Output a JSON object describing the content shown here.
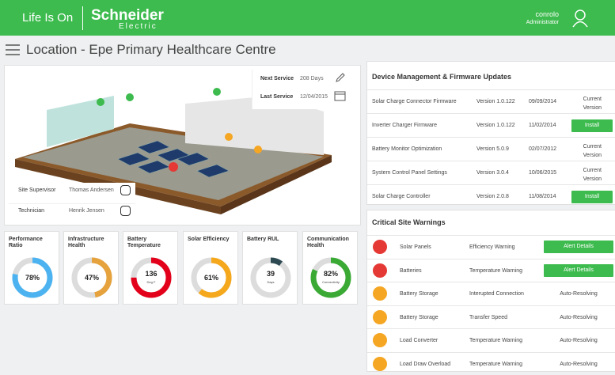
{
  "header": {
    "tagline": "Life Is On",
    "brand": "Schneider",
    "brand_sub": "Electric",
    "user_name": "conrolo",
    "user_role": "Administrator"
  },
  "page_title": "Location - Epe Primary Healthcare Centre",
  "service": {
    "next_label": "Next Service",
    "next_value": "208 Days",
    "last_label": "Last Service",
    "last_value": "12/04/2015"
  },
  "contacts": [
    {
      "role": "Site Supervisor",
      "name": "Thomas Andersen"
    },
    {
      "role": "Technician",
      "name": "Henrik Jensen"
    }
  ],
  "kpis": [
    {
      "title": "Performance Ratio",
      "value": 78,
      "value_label": "78%",
      "fill": 78,
      "color": "#4db3f0"
    },
    {
      "title": "Infrastructure Health",
      "value": 47,
      "value_label": "47%",
      "fill": 47,
      "color": "#e6a23c"
    },
    {
      "title": "Battery Temperature",
      "value": 136,
      "unit": "Deg F",
      "fill": 75,
      "color": "#e3001b"
    },
    {
      "title": "Solar Efficiency",
      "value": 61,
      "value_label": "61%",
      "fill": 61,
      "color": "#f5a81c"
    },
    {
      "title": "Battery RUL",
      "value": 39,
      "unit": "Days",
      "fill": 10,
      "color": "#2d4a52"
    },
    {
      "title": "Communication Health",
      "value": 82,
      "value_label": "82%",
      "unit": "Connectivity",
      "fill": 82,
      "color": "#3aaa35"
    }
  ],
  "devices": {
    "title": "Device Management & Firmware Updates",
    "rows": [
      {
        "name": "Solar Charge Connector Firmware",
        "version": "Version 1.0.122",
        "date": "09/09/2014",
        "action": "Current Version",
        "button": false
      },
      {
        "name": "Inverter Charger Firmware",
        "version": "Version 1.0.122",
        "date": "11/02/2014",
        "action": "Install",
        "button": true
      },
      {
        "name": "Battery Monitor Optimization",
        "version": "Version 5.0.9",
        "date": "02/07/2012",
        "action": "Current Version",
        "button": false
      },
      {
        "name": "System Control Panel Settings",
        "version": "Version 3.0.4",
        "date": "10/06/2015",
        "action": "Current Version",
        "button": false
      },
      {
        "name": "Solar Charge Controller",
        "version": "Version 2.0.8",
        "date": "11/08/2014",
        "action": "Install",
        "button": true
      }
    ]
  },
  "warnings": {
    "title": "Critical Site Warnings",
    "rows": [
      {
        "item": "Solar Panels",
        "issue": "Efficiency Warning",
        "status": "Alert Details",
        "button": true,
        "color": "#e53935"
      },
      {
        "item": "Batteries",
        "issue": "Temperature Warning",
        "status": "Alert Details",
        "button": true,
        "color": "#e53935"
      },
      {
        "item": "Battery Storage",
        "issue": "Interupted Connection",
        "status": "Auto-Resolving",
        "button": false,
        "color": "#f5a623"
      },
      {
        "item": "Battery Storage",
        "issue": "Transfer Speed",
        "status": "Auto-Resolving",
        "button": false,
        "color": "#f5a623"
      },
      {
        "item": "Load Converter",
        "issue": "Temperature Warning",
        "status": "Auto-Resolving",
        "button": false,
        "color": "#f5a623"
      },
      {
        "item": "Load Draw Overload",
        "issue": "Temperature Warning",
        "status": "Auto-Resolving",
        "button": false,
        "color": "#f5a623"
      }
    ]
  }
}
